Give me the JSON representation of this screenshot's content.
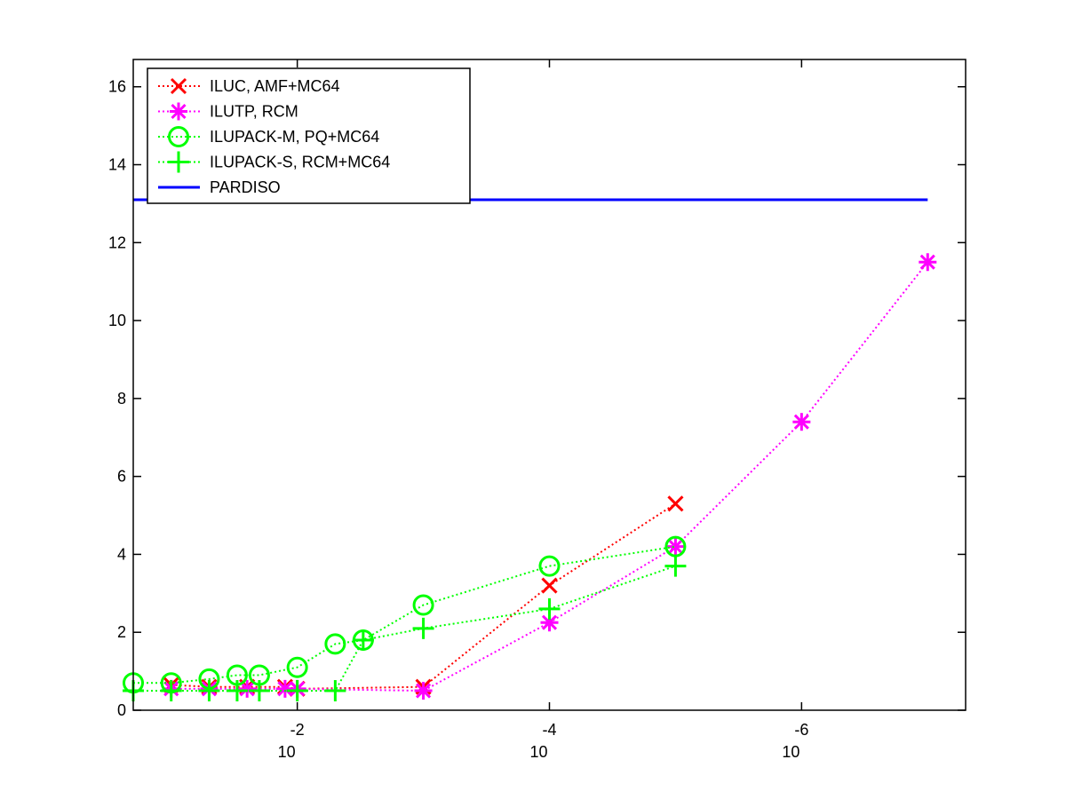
{
  "chart_data": {
    "type": "line",
    "x_scale": "log-reversed",
    "xlim": [
      0.2,
      5e-08
    ],
    "ylim": [
      0,
      16.7
    ],
    "grid": false,
    "legend_position": "top-left",
    "x_ticks": [
      {
        "value": 0.01,
        "base": "10",
        "exponent": "-2"
      },
      {
        "value": 0.0001,
        "base": "10",
        "exponent": "-4"
      },
      {
        "value": 1e-06,
        "base": "10",
        "exponent": "-6"
      }
    ],
    "y_ticks": [
      {
        "value": 0,
        "label": "0"
      },
      {
        "value": 2,
        "label": "2"
      },
      {
        "value": 4,
        "label": "4"
      },
      {
        "value": 6,
        "label": "6"
      },
      {
        "value": 8,
        "label": "8"
      },
      {
        "value": 10,
        "label": "10"
      },
      {
        "value": 12,
        "label": "12"
      },
      {
        "value": 14,
        "label": "14"
      },
      {
        "value": 16,
        "label": "16"
      }
    ],
    "series": [
      {
        "name": "ILUC, AMF+MC64",
        "color": "#ff0000",
        "marker": "x",
        "line_style": "dotted",
        "x": [
          0.1,
          0.05,
          0.025,
          0.0125,
          0.01,
          0.001,
          0.0001,
          1e-05
        ],
        "y": [
          0.65,
          0.6,
          0.6,
          0.6,
          0.55,
          0.6,
          3.2,
          5.3
        ]
      },
      {
        "name": "ILUTP, RCM",
        "color": "#ff00ff",
        "marker": "star",
        "line_style": "dotted",
        "x": [
          0.1,
          0.05,
          0.025,
          0.0125,
          0.01,
          0.001,
          0.0001,
          1e-05,
          1e-06,
          1e-07
        ],
        "y": [
          0.55,
          0.55,
          0.55,
          0.55,
          0.55,
          0.5,
          2.25,
          4.2,
          7.4,
          11.5
        ]
      },
      {
        "name": "ILUPACK-M, PQ+MC64",
        "color": "#00ff00",
        "marker": "circle",
        "line_style": "dotted",
        "x": [
          0.2,
          0.1,
          0.05,
          0.03,
          0.02,
          0.01,
          0.005,
          0.003,
          0.001,
          0.0001,
          1e-05
        ],
        "y": [
          0.7,
          0.7,
          0.8,
          0.9,
          0.9,
          1.1,
          1.7,
          1.8,
          2.7,
          3.7,
          4.2
        ]
      },
      {
        "name": "ILUPACK-S, RCM+MC64",
        "color": "#00ff00",
        "marker": "plus",
        "line_style": "dotted",
        "x": [
          0.2,
          0.1,
          0.05,
          0.03,
          0.02,
          0.01,
          0.005,
          0.003,
          0.001,
          0.0001,
          1e-05
        ],
        "y": [
          0.5,
          0.5,
          0.5,
          0.5,
          0.5,
          0.5,
          0.5,
          1.8,
          2.1,
          2.6,
          3.7
        ]
      },
      {
        "name": "PARDISO",
        "color": "#0000ff",
        "marker": "none",
        "line_style": "solid",
        "x": [
          0.2,
          1e-07
        ],
        "y": [
          13.1,
          13.1
        ]
      }
    ]
  }
}
